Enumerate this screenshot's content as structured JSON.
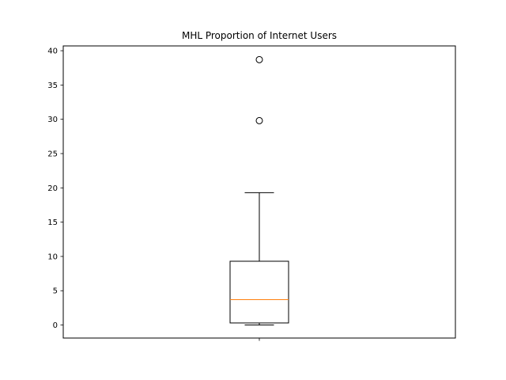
{
  "chart_data": {
    "type": "box",
    "title": "MHL Proportion of Internet Users",
    "xlabel": "",
    "ylabel": "",
    "ylim": [
      -1.9,
      40.7
    ],
    "yticks": [
      0,
      5,
      10,
      15,
      20,
      25,
      30,
      35,
      40
    ],
    "xticks": [
      ""
    ],
    "grid": false,
    "series": [
      {
        "whisker_low": 0.0,
        "q1": 0.3,
        "median": 3.7,
        "q3": 9.3,
        "whisker_high": 19.3,
        "outliers": [
          29.8,
          38.7
        ]
      }
    ],
    "colors": {
      "box": "#000000",
      "median": "#ff7f0e",
      "whisker": "#000000",
      "outlier": "#000000"
    }
  }
}
